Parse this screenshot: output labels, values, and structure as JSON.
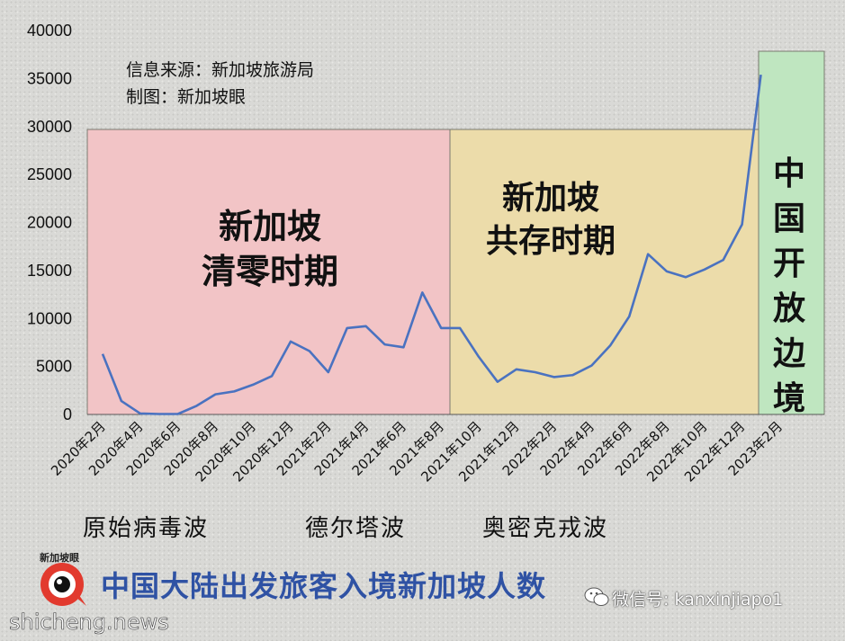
{
  "source_label": "信息来源：新加坡旅游局",
  "credit_label": "制图：新加坡眼",
  "footer_title": "中国大陆出发旅客入境新加坡人数",
  "logo_text": "新加坡眼",
  "watermark": "shicheng.news",
  "wechat_label": "微信号: kanxinjiapo1",
  "colors": {
    "line": "#4a72c0",
    "band_zero": "#f2c4c6",
    "band_coexist": "#ecdcaa",
    "band_open": "#bfe6c0",
    "title": "#2f52a4"
  },
  "bands": [
    {
      "lines": [
        "新加坡",
        "清零时期"
      ],
      "from": "2020年2月",
      "to": "2021年8月"
    },
    {
      "lines": [
        "新加坡",
        "共存时期"
      ],
      "from": "2021年9月",
      "to": "2022年12月"
    },
    {
      "lines": [
        "中",
        "国",
        "开",
        "放",
        "边",
        "境"
      ],
      "from": "2023年1月",
      "to": "2023年2月"
    }
  ],
  "waves": [
    "原始病毒波",
    "德尔塔波",
    "奥密克戎波"
  ],
  "chart_data": {
    "type": "line",
    "title": "中国大陆出发旅客入境新加坡人数",
    "xlabel": "",
    "ylabel": "",
    "ylim": [
      0,
      40000
    ],
    "yticks": [
      0,
      5000,
      10000,
      15000,
      20000,
      25000,
      30000,
      35000,
      40000
    ],
    "xtick_labels": [
      "2020年2月",
      "2020年4月",
      "2020年6月",
      "2020年8月",
      "2020年10月",
      "2020年12月",
      "2021年2月",
      "2021年4月",
      "2021年6月",
      "2021年8月",
      "2021年10月",
      "2021年12月",
      "2022年2月",
      "2022年4月",
      "2022年6月",
      "2022年8月",
      "2022年10月",
      "2022年12月",
      "2023年2月"
    ],
    "grid": false,
    "legend": "none",
    "series": [
      {
        "values": [
          6300,
          1400,
          100,
          50,
          50,
          900,
          2100,
          2400,
          3100,
          4000,
          7600,
          6600,
          4400,
          9000,
          9200,
          7300,
          7000,
          12700,
          9000,
          9000,
          6000,
          3400,
          4700,
          4400,
          3900,
          4100,
          5100,
          7200,
          10200,
          16700,
          14900,
          14300,
          15100,
          16100,
          19800,
          35400
        ]
      }
    ]
  }
}
